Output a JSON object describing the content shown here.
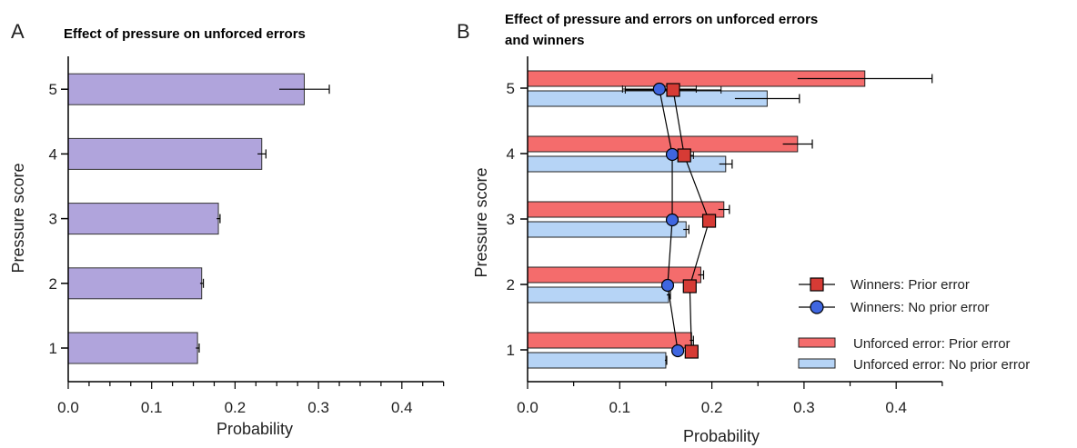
{
  "chart_data": [
    {
      "type": "bar",
      "panel": "A",
      "title": "Effect of pressure on unforced errors",
      "xlabel": "Probability",
      "ylabel": "Pressure score",
      "orientation": "horizontal",
      "categories": [
        "1",
        "2",
        "3",
        "4",
        "5"
      ],
      "xlim": [
        0,
        0.45
      ],
      "xticks": [
        "0.0",
        "0.1",
        "0.2",
        "0.3",
        "0.4"
      ],
      "colors": {
        "bar": "#b0a4dc",
        "bar_stroke": "#333333"
      },
      "series": [
        {
          "values": [
            0.155,
            0.16,
            0.18,
            0.232,
            0.283
          ],
          "errors": [
            0.002,
            0.002,
            0.002,
            0.005,
            0.03
          ]
        }
      ]
    },
    {
      "type": "bar",
      "panel": "B",
      "title": "Effect of pressure and errors on unforced errors and winners",
      "title_lines": [
        "Effect of pressure and errors on unforced errors",
        "and winners"
      ],
      "xlabel": "Probability",
      "ylabel": "Pressure score",
      "orientation": "horizontal",
      "categories": [
        "1",
        "2",
        "3",
        "4",
        "5"
      ],
      "xlim": [
        0,
        0.45
      ],
      "xticks": [
        "0.0",
        "0.1",
        "0.2",
        "0.3",
        "0.4"
      ],
      "legend_placement": "bottom-right",
      "series": [
        {
          "name": "Unforced error: Prior error",
          "kind": "bar",
          "color": "#f46c6c",
          "values": [
            0.178,
            0.188,
            0.213,
            0.293,
            0.366
          ],
          "errors": [
            0.002,
            0.003,
            0.006,
            0.016,
            0.073
          ]
        },
        {
          "name": "Unforced error: No prior error",
          "kind": "bar",
          "color": "#b6d4f6",
          "values": [
            0.15,
            0.153,
            0.172,
            0.215,
            0.26
          ],
          "errors": [
            0.001,
            0.002,
            0.003,
            0.007,
            0.035
          ]
        },
        {
          "name": "Winners: Prior error",
          "kind": "line-square",
          "color": "#d63b35",
          "values": [
            0.178,
            0.176,
            0.197,
            0.17,
            0.158
          ],
          "errors": [
            0.0,
            0.0,
            0.0,
            0.01,
            0.052
          ]
        },
        {
          "name": "Winners: No prior error",
          "kind": "line-circle",
          "color": "#3f66e0",
          "values": [
            0.163,
            0.152,
            0.157,
            0.157,
            0.143
          ],
          "errors": [
            0.0,
            0.0,
            0.0,
            0.0,
            0.04
          ]
        }
      ]
    }
  ],
  "panel_labels": {
    "a": "A",
    "b": "B"
  }
}
